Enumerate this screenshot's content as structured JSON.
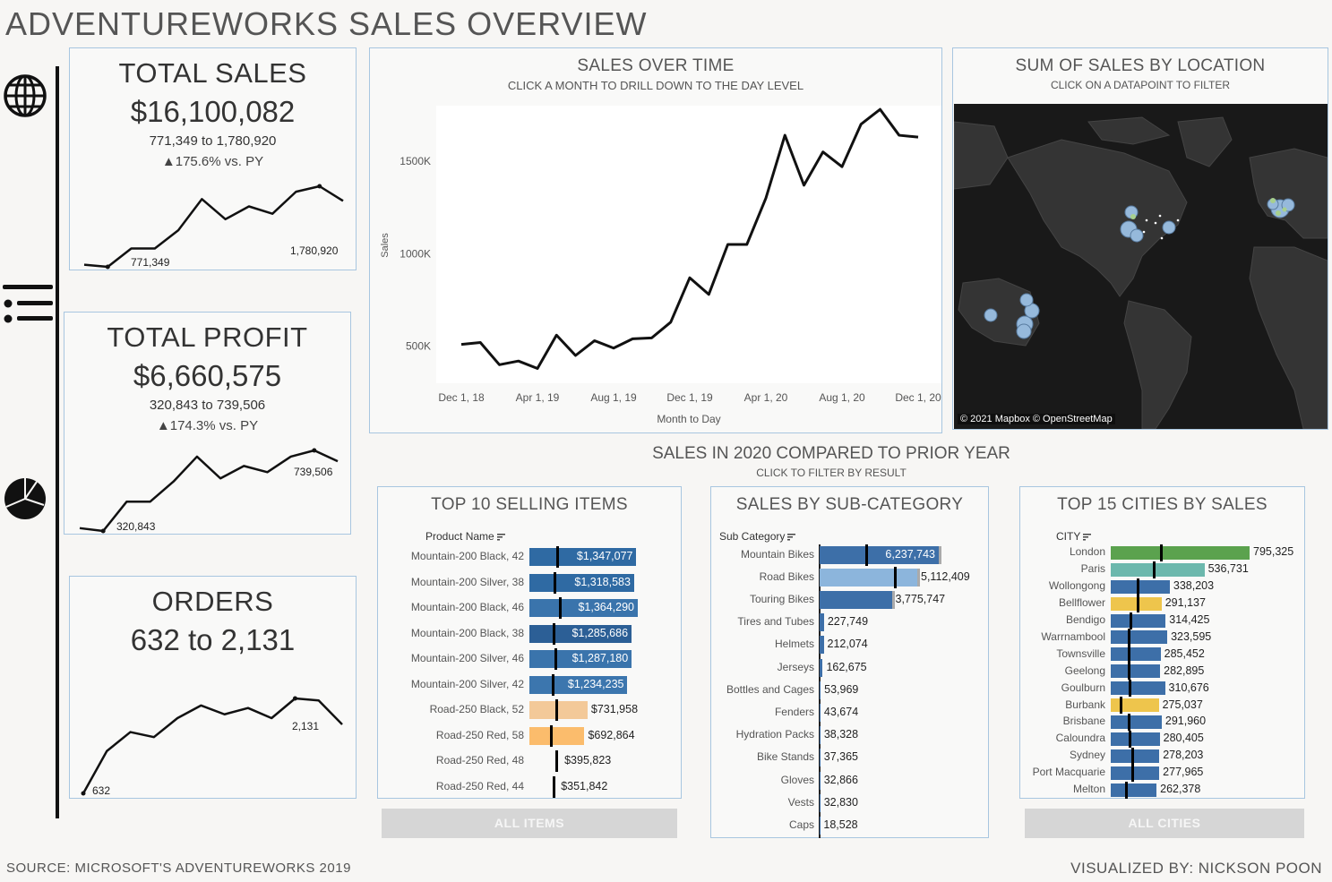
{
  "header": {
    "title": "ADVENTUREWORKS SALES OVERVIEW"
  },
  "nav": [
    {
      "icon": "globe-icon"
    },
    {
      "icon": "list-icon"
    },
    {
      "icon": "pie-chart-icon"
    }
  ],
  "kpis": {
    "sales": {
      "title": "TOTAL SALES",
      "value": "$16,100,082",
      "range": "771,349 to 1,780,920",
      "delta": "▲175.6% vs. PY",
      "min_label": "771,349",
      "max_label": "1,780,920"
    },
    "profit": {
      "title": "TOTAL PROFIT",
      "value": "$6,660,575",
      "range": "320,843 to 739,506",
      "delta": "▲174.3% vs. PY",
      "min_label": "320,843",
      "max_label": "739,506"
    },
    "orders": {
      "title": "ORDERS",
      "value": "632 to 2,131",
      "min_label": "632",
      "max_label": "2,131"
    }
  },
  "sales_over_time": {
    "title": "SALES OVER TIME",
    "subtitle": "CLICK A MONTH TO DRILL DOWN TO THE DAY LEVEL",
    "ylabel": "Sales",
    "xlabel": "Month to Day",
    "y_ticks": [
      "500K",
      "1000K",
      "1500K"
    ],
    "x_ticks": [
      "Dec 1, 18",
      "Apr 1, 19",
      "Aug 1, 19",
      "Dec 1, 19",
      "Apr 1, 20",
      "Aug 1, 20",
      "Dec 1, 20"
    ]
  },
  "map": {
    "title": "SUM OF SALES BY LOCATION",
    "subtitle": "CLICK ON A DATAPOINT TO FILTER",
    "attribution": "© 2021 Mapbox © OpenStreetMap"
  },
  "comparison": {
    "title": "SALES IN 2020 COMPARED TO PRIOR YEAR",
    "subtitle": "CLICK TO FILTER BY RESULT"
  },
  "top_items": {
    "title": "TOP 10 SELLING ITEMS",
    "header": "Product Name",
    "button": "ALL ITEMS",
    "rows": [
      {
        "label": "Mountain-200 Black, 42",
        "value_label": "$1,347,077"
      },
      {
        "label": "Mountain-200 Silver, 38",
        "value_label": "$1,318,583"
      },
      {
        "label": "Mountain-200 Black, 46",
        "value_label": "$1,364,290"
      },
      {
        "label": "Mountain-200 Black, 38",
        "value_label": "$1,285,686"
      },
      {
        "label": "Mountain-200 Silver, 46",
        "value_label": "$1,287,180"
      },
      {
        "label": "Mountain-200 Silver, 42",
        "value_label": "$1,234,235"
      },
      {
        "label": "Road-250 Black, 52",
        "value_label": "$731,958"
      },
      {
        "label": "Road-250 Red, 58",
        "value_label": "$692,864"
      },
      {
        "label": "Road-250 Red, 48",
        "value_label": "$395,823"
      },
      {
        "label": "Road-250 Red, 44",
        "value_label": "$351,842"
      }
    ]
  },
  "sub_category": {
    "title": "SALES BY SUB-CATEGORY",
    "header": "Sub Category",
    "rows": [
      {
        "label": "Mountain Bikes",
        "value_label": "6,237,743"
      },
      {
        "label": "Road Bikes",
        "value_label": "5,112,409"
      },
      {
        "label": "Touring Bikes",
        "value_label": "3,775,747"
      },
      {
        "label": "Tires and Tubes",
        "value_label": "227,749"
      },
      {
        "label": "Helmets",
        "value_label": "212,074"
      },
      {
        "label": "Jerseys",
        "value_label": "162,675"
      },
      {
        "label": "Bottles and Cages",
        "value_label": "53,969"
      },
      {
        "label": "Fenders",
        "value_label": "43,674"
      },
      {
        "label": "Hydration Packs",
        "value_label": "38,328"
      },
      {
        "label": "Bike Stands",
        "value_label": "37,365"
      },
      {
        "label": "Gloves",
        "value_label": "32,866"
      },
      {
        "label": "Vests",
        "value_label": "32,830"
      },
      {
        "label": "Caps",
        "value_label": "18,528"
      }
    ]
  },
  "top_cities": {
    "title": "TOP 15 CITIES BY SALES",
    "header": "CITY",
    "button": "ALL CITIES",
    "rows": [
      {
        "label": "London",
        "value_label": "795,325"
      },
      {
        "label": "Paris",
        "value_label": "536,731"
      },
      {
        "label": "Wollongong",
        "value_label": "338,203"
      },
      {
        "label": "Bellflower",
        "value_label": "291,137"
      },
      {
        "label": "Bendigo",
        "value_label": "314,425"
      },
      {
        "label": "Warrnambool",
        "value_label": "323,595"
      },
      {
        "label": "Townsville",
        "value_label": "285,452"
      },
      {
        "label": "Geelong",
        "value_label": "282,895"
      },
      {
        "label": "Goulburn",
        "value_label": "310,676"
      },
      {
        "label": "Burbank",
        "value_label": "275,037"
      },
      {
        "label": "Brisbane",
        "value_label": "291,960"
      },
      {
        "label": "Caloundra",
        "value_label": "280,405"
      },
      {
        "label": "Sydney",
        "value_label": "278,203"
      },
      {
        "label": "Port Macquarie",
        "value_label": "277,965"
      },
      {
        "label": "Melton",
        "value_label": "262,378"
      }
    ]
  },
  "footer": {
    "source": "SOURCE: MICROSOFT'S ADVENTUREWORKS 2019",
    "credit": "VISUALIZED BY: NICKSON POON"
  },
  "chart_data": [
    {
      "type": "line",
      "title": "SALES OVER TIME",
      "xlabel": "Month to Day",
      "ylabel": "Sales",
      "x": [
        "Dec 1, 18",
        "Jan 1, 19",
        "Feb 1, 19",
        "Mar 1, 19",
        "Apr 1, 19",
        "May 1, 19",
        "Jun 1, 19",
        "Jul 1, 19",
        "Aug 1, 19",
        "Sep 1, 19",
        "Oct 1, 19",
        "Nov 1, 19",
        "Dec 1, 19",
        "Jan 1, 20",
        "Feb 1, 20",
        "Mar 1, 20",
        "Apr 1, 20",
        "May 1, 20",
        "Jun 1, 20",
        "Jul 1, 20",
        "Aug 1, 20",
        "Sep 1, 20",
        "Oct 1, 20",
        "Nov 1, 20",
        "Dec 1, 20"
      ],
      "values": [
        510000,
        520000,
        400000,
        420000,
        380000,
        560000,
        450000,
        530000,
        490000,
        540000,
        545000,
        630000,
        870000,
        780000,
        1050000,
        1050000,
        1300000,
        1640000,
        1370000,
        1550000,
        1470000,
        1700000,
        1780000,
        1640000,
        1630000
      ],
      "ylim": [
        300000,
        1800000
      ],
      "grid": false
    },
    {
      "type": "bar",
      "title": "TOP 10 SELLING ITEMS",
      "categories": [
        "Mountain-200 Black, 42",
        "Mountain-200 Silver, 38",
        "Mountain-200 Black, 46",
        "Mountain-200 Black, 38",
        "Mountain-200 Silver, 46",
        "Mountain-200 Silver, 42",
        "Road-250 Black, 52",
        "Road-250 Red, 58",
        "Road-250 Red, 48",
        "Road-250 Red, 44"
      ],
      "values": [
        1347077,
        1318583,
        1364290,
        1285686,
        1287180,
        1234235,
        731958,
        692864,
        395823,
        351842
      ],
      "prior_year": [
        340000,
        310000,
        370000,
        290000,
        320000,
        280000,
        330000,
        260000,
        330000,
        290000
      ],
      "colors": [
        "#2f6aa3",
        "#2f6aa3",
        "#3a74ac",
        "#2c5f96",
        "#3a74ac",
        "#3c76ae",
        "#f3c999",
        "#fbbc6c",
        "#f9f9f8",
        "#f9f9f8"
      ]
    },
    {
      "type": "bar",
      "title": "SALES BY SUB-CATEGORY",
      "categories": [
        "Mountain Bikes",
        "Road Bikes",
        "Touring Bikes",
        "Tires and Tubes",
        "Helmets",
        "Jerseys",
        "Bottles and Cages",
        "Fenders",
        "Hydration Packs",
        "Bike Stands",
        "Gloves",
        "Vests",
        "Caps"
      ],
      "values": [
        6237743,
        5112409,
        3775747,
        227749,
        212074,
        162675,
        53969,
        43674,
        38328,
        37365,
        32866,
        32830,
        18528
      ],
      "prior_year": [
        2400000,
        3900000,
        0,
        0,
        0,
        0,
        0,
        0,
        0,
        0,
        0,
        0,
        0
      ],
      "colors": [
        "#3d6fa8",
        "#8cb5dc",
        "#3d6fa8",
        "#3d6fa8",
        "#3d6fa8",
        "#3d6fa8",
        "#3d6fa8",
        "#3d6fa8",
        "#3d6fa8",
        "#3d6fa8",
        "#3d6fa8",
        "#3d6fa8",
        "#3d6fa8"
      ]
    },
    {
      "type": "bar",
      "title": "TOP 15 CITIES BY SALES",
      "categories": [
        "London",
        "Paris",
        "Wollongong",
        "Bellflower",
        "Bendigo",
        "Warrnambool",
        "Townsville",
        "Geelong",
        "Goulburn",
        "Burbank",
        "Brisbane",
        "Caloundra",
        "Sydney",
        "Port Macquarie",
        "Melton"
      ],
      "values": [
        795325,
        536731,
        338203,
        291137,
        314425,
        323595,
        285452,
        282895,
        310676,
        275037,
        291960,
        280405,
        278203,
        277965,
        262378
      ],
      "prior_year": [
        280000,
        240000,
        150000,
        150000,
        110000,
        100000,
        100000,
        95000,
        105000,
        50000,
        95000,
        105000,
        120000,
        120000,
        80000
      ],
      "colors": [
        "#5ba24e",
        "#6cb8ad",
        "#3d6fa8",
        "#eec54c",
        "#3d6fa8",
        "#3d6fa8",
        "#3d6fa8",
        "#3d6fa8",
        "#3d6fa8",
        "#eec54c",
        "#3d6fa8",
        "#3d6fa8",
        "#3d6fa8",
        "#3d6fa8",
        "#3d6fa8"
      ]
    },
    {
      "type": "line",
      "title": "TOTAL SALES",
      "values": [
        771349,
        760000,
        860000,
        860000,
        960000,
        1130000,
        1020000,
        1090000,
        1050000,
        1170000,
        1200000,
        1120000
      ],
      "max_value": 1780920
    },
    {
      "type": "line",
      "title": "TOTAL PROFIT",
      "values": [
        330000,
        320843,
        415000,
        415000,
        480000,
        560000,
        490000,
        530000,
        510000,
        560000,
        580000,
        545000
      ],
      "max_value": 739506
    },
    {
      "type": "line",
      "title": "ORDERS",
      "values": [
        632,
        1300,
        1600,
        1520,
        1820,
        2020,
        1880,
        1980,
        1820,
        2131,
        2100,
        1720
      ]
    }
  ],
  "map_points": {
    "colors": {
      "land": "#333333",
      "water": "#1a1a1a",
      "point": "#9cc1e4",
      "point_green": "#a8d08d"
    }
  }
}
